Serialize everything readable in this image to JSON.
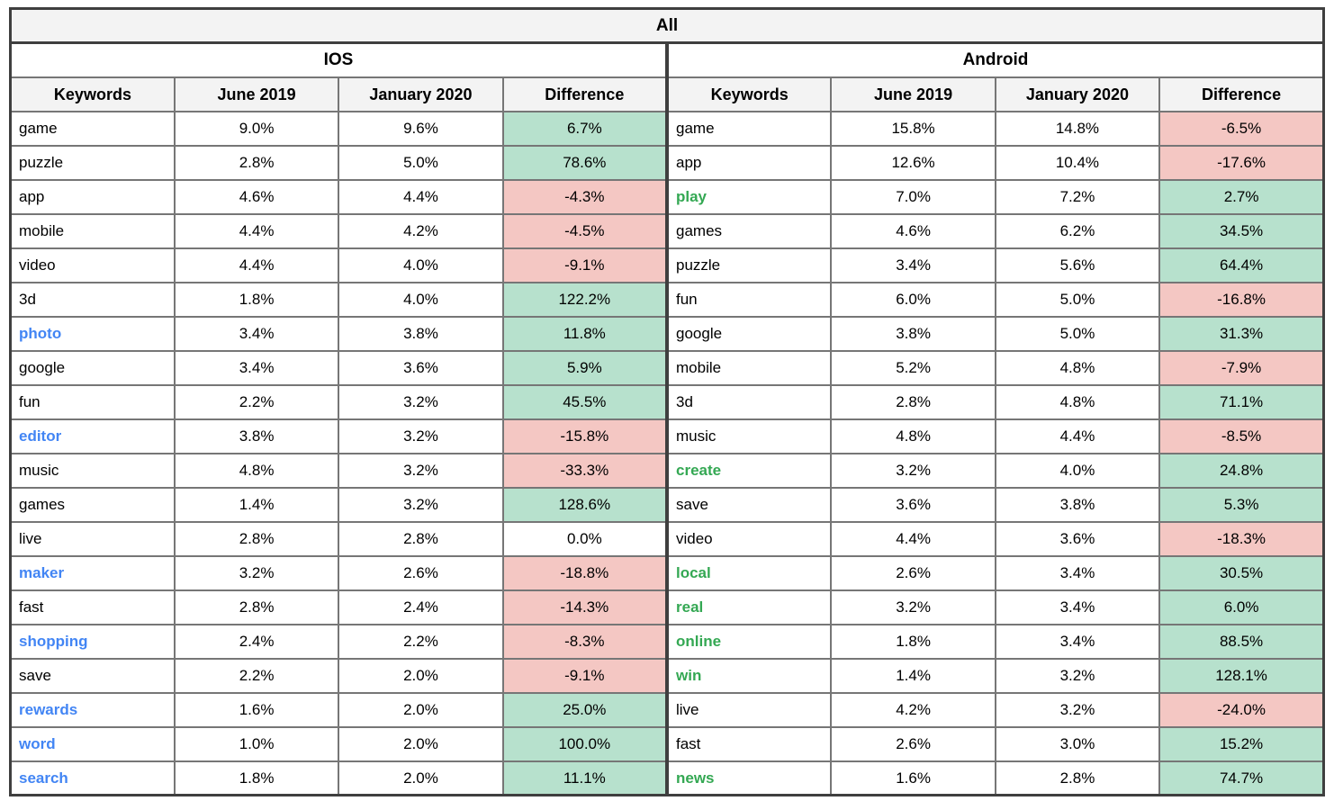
{
  "colors": {
    "header_bg": "#f3f3f3",
    "positive_bg": "#b7e1cd",
    "negative_bg": "#f4c7c3",
    "keyword_blue": "#4285f4",
    "keyword_green": "#34a853",
    "grid_border": "#767676",
    "outer_border": "#3f3f3f"
  },
  "chart_data": {
    "type": "table",
    "title": "All",
    "groups": [
      {
        "name": "IOS",
        "columns": [
          "Keywords",
          "June 2019",
          "January 2020",
          "Difference"
        ],
        "rows": [
          {
            "keyword": "game",
            "keyword_color": "black",
            "june_2019": "9.0%",
            "january_2020": "9.6%",
            "difference": "6.7%",
            "difference_bg": "green"
          },
          {
            "keyword": "puzzle",
            "keyword_color": "black",
            "june_2019": "2.8%",
            "january_2020": "5.0%",
            "difference": "78.6%",
            "difference_bg": "green"
          },
          {
            "keyword": "app",
            "keyword_color": "black",
            "june_2019": "4.6%",
            "january_2020": "4.4%",
            "difference": "-4.3%",
            "difference_bg": "red"
          },
          {
            "keyword": "mobile",
            "keyword_color": "black",
            "june_2019": "4.4%",
            "january_2020": "4.2%",
            "difference": "-4.5%",
            "difference_bg": "red"
          },
          {
            "keyword": "video",
            "keyword_color": "black",
            "june_2019": "4.4%",
            "january_2020": "4.0%",
            "difference": "-9.1%",
            "difference_bg": "red"
          },
          {
            "keyword": "3d",
            "keyword_color": "black",
            "june_2019": "1.8%",
            "january_2020": "4.0%",
            "difference": "122.2%",
            "difference_bg": "green"
          },
          {
            "keyword": "photo",
            "keyword_color": "blue",
            "june_2019": "3.4%",
            "january_2020": "3.8%",
            "difference": "11.8%",
            "difference_bg": "green"
          },
          {
            "keyword": "google",
            "keyword_color": "black",
            "june_2019": "3.4%",
            "january_2020": "3.6%",
            "difference": "5.9%",
            "difference_bg": "green"
          },
          {
            "keyword": "fun",
            "keyword_color": "black",
            "june_2019": "2.2%",
            "january_2020": "3.2%",
            "difference": "45.5%",
            "difference_bg": "green"
          },
          {
            "keyword": "editor",
            "keyword_color": "blue",
            "june_2019": "3.8%",
            "january_2020": "3.2%",
            "difference": "-15.8%",
            "difference_bg": "red"
          },
          {
            "keyword": "music",
            "keyword_color": "black",
            "june_2019": "4.8%",
            "january_2020": "3.2%",
            "difference": "-33.3%",
            "difference_bg": "red"
          },
          {
            "keyword": "games",
            "keyword_color": "black",
            "june_2019": "1.4%",
            "january_2020": "3.2%",
            "difference": "128.6%",
            "difference_bg": "green"
          },
          {
            "keyword": "live",
            "keyword_color": "black",
            "june_2019": "2.8%",
            "january_2020": "2.8%",
            "difference": "0.0%",
            "difference_bg": "none"
          },
          {
            "keyword": "maker",
            "keyword_color": "blue",
            "june_2019": "3.2%",
            "january_2020": "2.6%",
            "difference": "-18.8%",
            "difference_bg": "red"
          },
          {
            "keyword": "fast",
            "keyword_color": "black",
            "june_2019": "2.8%",
            "january_2020": "2.4%",
            "difference": "-14.3%",
            "difference_bg": "red"
          },
          {
            "keyword": "shopping",
            "keyword_color": "blue",
            "june_2019": "2.4%",
            "january_2020": "2.2%",
            "difference": "-8.3%",
            "difference_bg": "red"
          },
          {
            "keyword": "save",
            "keyword_color": "black",
            "june_2019": "2.2%",
            "january_2020": "2.0%",
            "difference": "-9.1%",
            "difference_bg": "red"
          },
          {
            "keyword": "rewards",
            "keyword_color": "blue",
            "june_2019": "1.6%",
            "january_2020": "2.0%",
            "difference": "25.0%",
            "difference_bg": "green"
          },
          {
            "keyword": "word",
            "keyword_color": "blue",
            "june_2019": "1.0%",
            "january_2020": "2.0%",
            "difference": "100.0%",
            "difference_bg": "green"
          },
          {
            "keyword": "search",
            "keyword_color": "blue",
            "june_2019": "1.8%",
            "january_2020": "2.0%",
            "difference": "11.1%",
            "difference_bg": "green"
          }
        ]
      },
      {
        "name": "Android",
        "columns": [
          "Keywords",
          "June 2019",
          "January 2020",
          "Difference"
        ],
        "rows": [
          {
            "keyword": "game",
            "keyword_color": "black",
            "june_2019": "15.8%",
            "january_2020": "14.8%",
            "difference": "-6.5%",
            "difference_bg": "red"
          },
          {
            "keyword": "app",
            "keyword_color": "black",
            "june_2019": "12.6%",
            "january_2020": "10.4%",
            "difference": "-17.6%",
            "difference_bg": "red"
          },
          {
            "keyword": "play",
            "keyword_color": "green",
            "june_2019": "7.0%",
            "january_2020": "7.2%",
            "difference": "2.7%",
            "difference_bg": "green"
          },
          {
            "keyword": "games",
            "keyword_color": "black",
            "june_2019": "4.6%",
            "january_2020": "6.2%",
            "difference": "34.5%",
            "difference_bg": "green"
          },
          {
            "keyword": "puzzle",
            "keyword_color": "black",
            "june_2019": "3.4%",
            "january_2020": "5.6%",
            "difference": "64.4%",
            "difference_bg": "green"
          },
          {
            "keyword": "fun",
            "keyword_color": "black",
            "june_2019": "6.0%",
            "january_2020": "5.0%",
            "difference": "-16.8%",
            "difference_bg": "red"
          },
          {
            "keyword": "google",
            "keyword_color": "black",
            "june_2019": "3.8%",
            "january_2020": "5.0%",
            "difference": "31.3%",
            "difference_bg": "green"
          },
          {
            "keyword": "mobile",
            "keyword_color": "black",
            "june_2019": "5.2%",
            "january_2020": "4.8%",
            "difference": "-7.9%",
            "difference_bg": "red"
          },
          {
            "keyword": "3d",
            "keyword_color": "black",
            "june_2019": "2.8%",
            "january_2020": "4.8%",
            "difference": "71.1%",
            "difference_bg": "green"
          },
          {
            "keyword": "music",
            "keyword_color": "black",
            "june_2019": "4.8%",
            "january_2020": "4.4%",
            "difference": "-8.5%",
            "difference_bg": "red"
          },
          {
            "keyword": "create",
            "keyword_color": "green",
            "june_2019": "3.2%",
            "january_2020": "4.0%",
            "difference": "24.8%",
            "difference_bg": "green"
          },
          {
            "keyword": "save",
            "keyword_color": "black",
            "june_2019": "3.6%",
            "january_2020": "3.8%",
            "difference": "5.3%",
            "difference_bg": "green"
          },
          {
            "keyword": "video",
            "keyword_color": "black",
            "june_2019": "4.4%",
            "january_2020": "3.6%",
            "difference": "-18.3%",
            "difference_bg": "red"
          },
          {
            "keyword": "local",
            "keyword_color": "green",
            "june_2019": "2.6%",
            "january_2020": "3.4%",
            "difference": "30.5%",
            "difference_bg": "green"
          },
          {
            "keyword": "real",
            "keyword_color": "green",
            "june_2019": "3.2%",
            "january_2020": "3.4%",
            "difference": "6.0%",
            "difference_bg": "green"
          },
          {
            "keyword": "online",
            "keyword_color": "green",
            "june_2019": "1.8%",
            "january_2020": "3.4%",
            "difference": "88.5%",
            "difference_bg": "green"
          },
          {
            "keyword": "win",
            "keyword_color": "green",
            "june_2019": "1.4%",
            "january_2020": "3.2%",
            "difference": "128.1%",
            "difference_bg": "green"
          },
          {
            "keyword": "live",
            "keyword_color": "black",
            "june_2019": "4.2%",
            "january_2020": "3.2%",
            "difference": "-24.0%",
            "difference_bg": "red"
          },
          {
            "keyword": "fast",
            "keyword_color": "black",
            "june_2019": "2.6%",
            "january_2020": "3.0%",
            "difference": "15.2%",
            "difference_bg": "green"
          },
          {
            "keyword": "news",
            "keyword_color": "green",
            "june_2019": "1.6%",
            "january_2020": "2.8%",
            "difference": "74.7%",
            "difference_bg": "green"
          }
        ]
      }
    ]
  }
}
